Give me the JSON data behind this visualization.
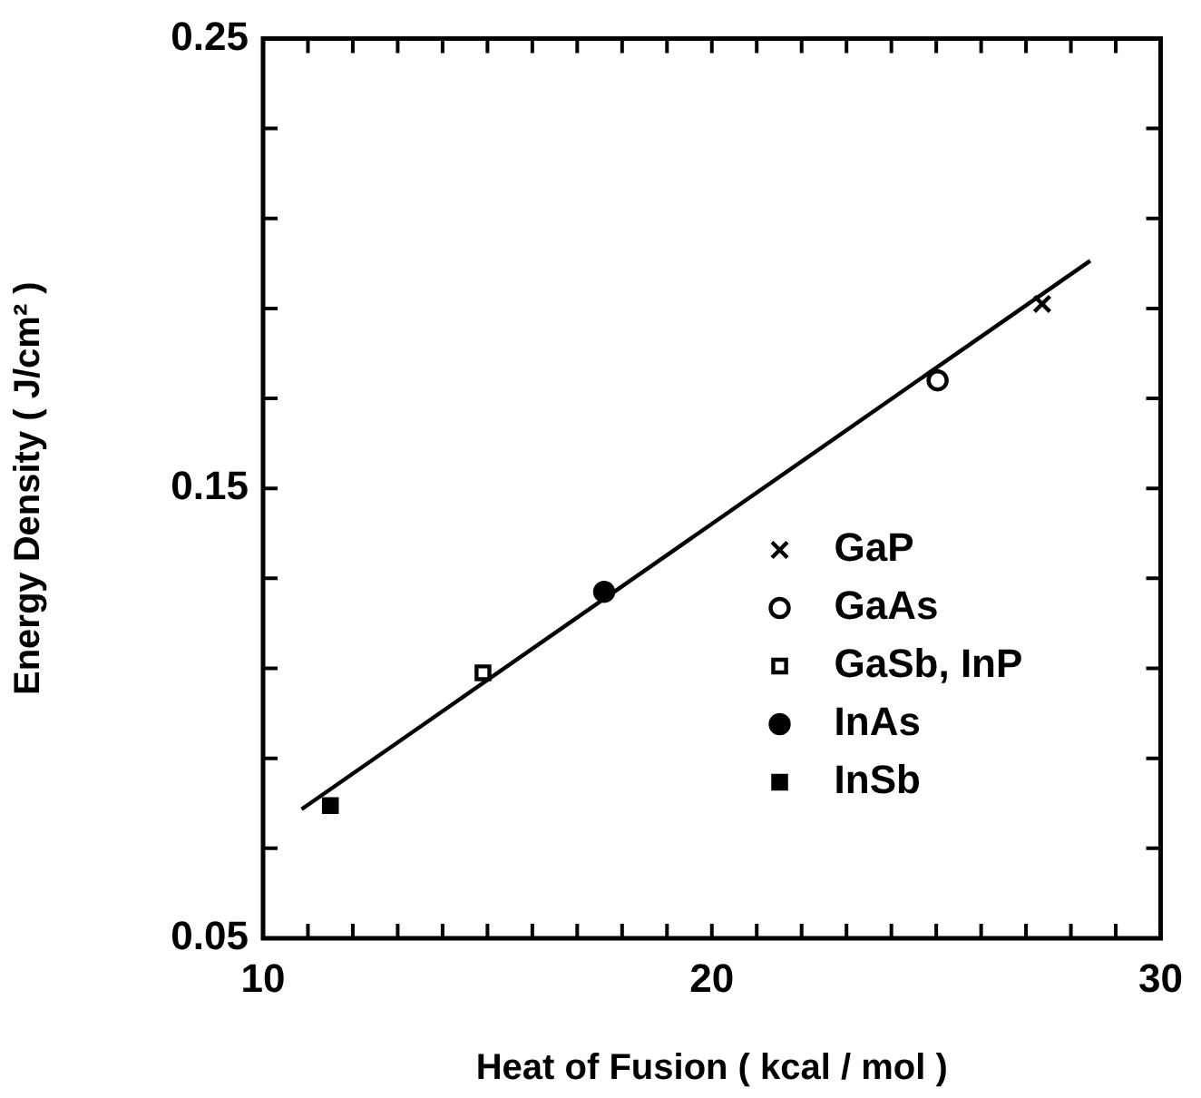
{
  "chart_data": {
    "type": "scatter",
    "xlabel": "Heat of Fusion ( kcal / mol )",
    "ylabel": "Energy Density ( J/cm² )",
    "xlim": [
      10,
      30
    ],
    "xticks": [
      10,
      {
        "value": 11,
        "label": null
      },
      {
        "value": 12,
        "label": null
      },
      {
        "value": 13,
        "label": null
      },
      {
        "value": 14,
        "label": null
      },
      {
        "value": 15,
        "label": null
      },
      {
        "value": 16,
        "label": null
      },
      {
        "value": 17,
        "label": null
      },
      {
        "value": 18,
        "label": null
      },
      {
        "value": 19,
        "label": null
      },
      20,
      {
        "value": 21,
        "label": null
      },
      {
        "value": 22,
        "label": null
      },
      {
        "value": 23,
        "label": null
      },
      {
        "value": 24,
        "label": null
      },
      {
        "value": 25,
        "label": null
      },
      {
        "value": 26,
        "label": null
      },
      {
        "value": 27,
        "label": null
      },
      {
        "value": 28,
        "label": null
      },
      {
        "value": 29,
        "label": null
      },
      30
    ],
    "ylim": [
      0.05,
      0.25
    ],
    "yticks": [
      0.05,
      {
        "value": 0.07,
        "label": null
      },
      {
        "value": 0.09,
        "label": null
      },
      {
        "value": 0.11,
        "label": null
      },
      {
        "value": 0.13,
        "label": null
      },
      0.15,
      {
        "value": 0.17,
        "label": null
      },
      {
        "value": 0.19,
        "label": null
      },
      {
        "value": 0.21,
        "label": null
      },
      {
        "value": 0.23,
        "label": null
      },
      0.25
    ],
    "grid": false,
    "legend": "bottom right",
    "series": [
      {
        "name": "GaP",
        "color": "#000000",
        "marker": "cross",
        "x": [
          27.36
        ],
        "values": [
          0.191
        ]
      },
      {
        "name": "GaAs",
        "color": "#000000",
        "marker": "circle",
        "x": [
          25.03
        ],
        "values": [
          0.174
        ]
      },
      {
        "name": "GaSb, InP",
        "color": "#000000",
        "marker": "square",
        "x": [
          14.9
        ],
        "values": [
          0.109
        ]
      },
      {
        "name": "InAs",
        "color": "#000000",
        "marker": "circle",
        "x": [
          17.6
        ],
        "values": [
          0.127
        ]
      },
      {
        "name": "InSb",
        "color": "#000000",
        "marker": "square",
        "x": [
          11.5
        ],
        "values": [
          0.0795
        ]
      },
      {
        "type": "line",
        "color": "#000000",
        "marker": "none",
        "line_style": "solid",
        "x": [
          10.86,
          28.43
        ],
        "values": [
          0.0787,
          0.2006
        ]
      }
    ]
  }
}
